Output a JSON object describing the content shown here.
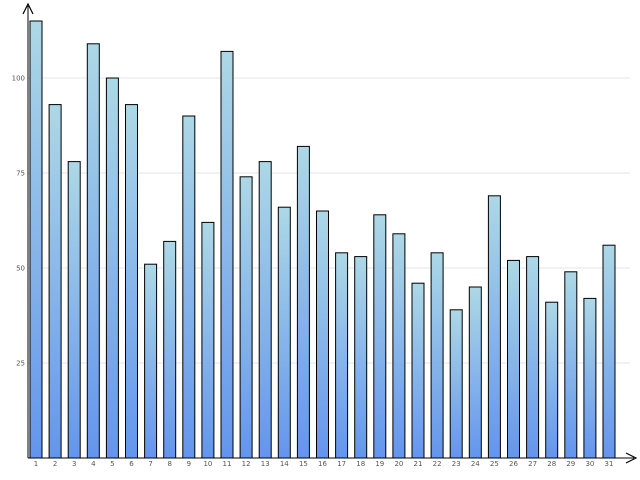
{
  "chart_data": {
    "type": "bar",
    "title": "",
    "xlabel": "",
    "ylabel": "",
    "categories": [
      "1",
      "2",
      "3",
      "4",
      "5",
      "6",
      "7",
      "8",
      "9",
      "10",
      "11",
      "12",
      "13",
      "14",
      "15",
      "16",
      "17",
      "18",
      "19",
      "20",
      "21",
      "22",
      "23",
      "24",
      "25",
      "26",
      "27",
      "28",
      "29",
      "30",
      "31"
    ],
    "values": [
      115,
      93,
      78,
      109,
      100,
      93,
      51,
      57,
      90,
      62,
      107,
      74,
      78,
      66,
      82,
      65,
      54,
      53,
      64,
      59,
      46,
      54,
      39,
      45,
      69,
      52,
      53,
      41,
      49,
      42,
      56
    ],
    "y_ticks": [
      "25",
      "50",
      "75",
      "100"
    ],
    "ylim": [
      0,
      120
    ],
    "grid": true,
    "legend": "none",
    "colors": {
      "bar_top": "#add8e6",
      "bar_bottom": "#6495ed",
      "bar_stroke": "#000000",
      "grid": "#e6e6e6"
    }
  }
}
